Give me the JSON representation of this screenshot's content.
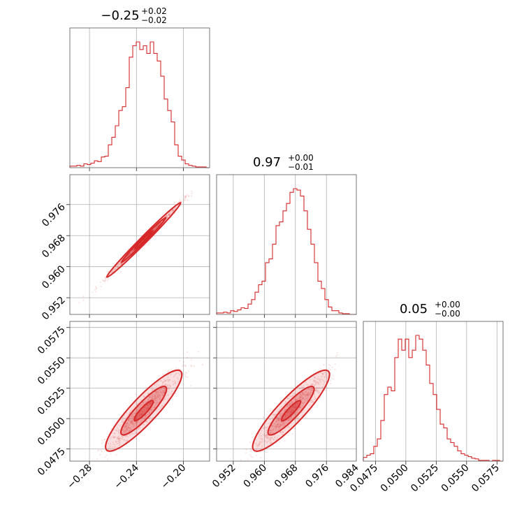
{
  "chart_data": {
    "type": "corner",
    "color": "#d62728",
    "parameters": [
      {
        "title": "0.25",
        "title_sign": "−",
        "title_upper": "+0.02",
        "title_lower": "−0.02",
        "range": [
          -0.2967,
          -0.1777
        ],
        "ticks": [
          -0.28,
          -0.24,
          -0.2
        ],
        "tick_labels": [
          "−0.28",
          "−0.24",
          "−0.20"
        ],
        "hist": [
          2,
          2,
          3,
          2,
          5,
          4,
          6,
          9,
          8,
          14,
          15,
          30,
          40,
          55,
          75,
          80,
          105,
          145,
          160,
          165,
          155,
          160,
          150,
          165,
          150,
          140,
          120,
          90,
          75,
          60,
          30,
          15,
          10,
          5,
          3,
          2,
          1,
          1,
          1,
          0
        ]
      },
      {
        "title": "0.97",
        "title_sign": "",
        "title_upper": "+0.00",
        "title_lower": "−0.01",
        "range": [
          0.9477,
          0.9837
        ],
        "ticks": [
          0.952,
          0.96,
          0.968,
          0.976
        ],
        "tick_labels": [
          "0.952",
          "0.960",
          "0.968",
          "0.976"
        ],
        "bottom_tick_labels": [
          "0.952",
          "0.960",
          "0.968",
          "0.976",
          "0.984"
        ],
        "hist": [
          2,
          2,
          3,
          2,
          5,
          4,
          6,
          9,
          8,
          14,
          20,
          30,
          40,
          45,
          70,
          75,
          95,
          120,
          125,
          140,
          150,
          165,
          170,
          168,
          160,
          140,
          115,
          95,
          70,
          45,
          35,
          20,
          10,
          5,
          5,
          2,
          1,
          1,
          0,
          0
        ]
      },
      {
        "title": "0.05",
        "title_sign": "",
        "title_upper": "+0.00",
        "title_lower": "−0.00",
        "range": [
          0.0465,
          0.058
        ],
        "ticks": [
          0.0475,
          0.05,
          0.0525,
          0.055,
          0.0575
        ],
        "tick_labels": [
          "0.0475",
          "0.0500",
          "0.0525",
          "0.0550",
          "0.0575"
        ],
        "hist": [
          5,
          8,
          10,
          20,
          30,
          55,
          90,
          100,
          95,
          140,
          165,
          150,
          165,
          140,
          150,
          170,
          165,
          150,
          130,
          105,
          90,
          70,
          50,
          45,
          30,
          25,
          20,
          14,
          10,
          8,
          6,
          4,
          3,
          1,
          1,
          1,
          0,
          1,
          1,
          0
        ]
      }
    ],
    "grid": true,
    "legend": "none"
  }
}
